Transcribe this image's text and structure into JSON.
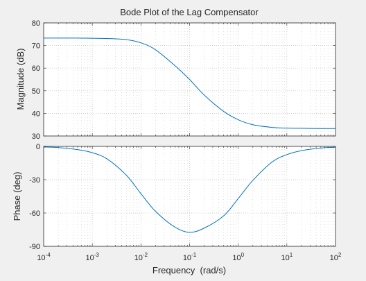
{
  "title": "Bode Plot of the Lag Compensator",
  "colors": {
    "figure_bg": "#f0f0f0",
    "axes_bg": "#ffffff",
    "line": "#0072bd",
    "grid": "#bfbfbf",
    "text": "#262626"
  },
  "chart_data": [
    {
      "type": "line",
      "panel": "magnitude",
      "ylabel": "Magnitude (dB)",
      "xscale": "log",
      "xlim": [
        0.0001,
        100
      ],
      "ylim": [
        30,
        80
      ],
      "yticks": [
        30,
        40,
        50,
        60,
        70,
        80
      ],
      "grid": true,
      "x": [
        0.0001,
        0.0002,
        0.0005,
        0.001,
        0.002,
        0.005,
        0.01,
        0.02,
        0.05,
        0.1,
        0.2,
        0.5,
        1,
        2,
        5,
        10,
        20,
        50,
        100
      ],
      "values": [
        73.3,
        73.3,
        73.3,
        73.2,
        73.1,
        72.6,
        71.2,
        68.1,
        61.1,
        55.0,
        48.1,
        40.9,
        37.2,
        35.0,
        33.8,
        33.5,
        33.4,
        33.3,
        33.3
      ]
    },
    {
      "type": "line",
      "panel": "phase",
      "xlabel": "Frequency  (rad/s)",
      "ylabel": "Phase (deg)",
      "xscale": "log",
      "xlim": [
        0.0001,
        100
      ],
      "ylim": [
        -90,
        0
      ],
      "yticks": [
        -90,
        -60,
        -30,
        0
      ],
      "xticks": [
        "10^-4",
        "10^-3",
        "10^-2",
        "10^-1",
        "10^0",
        "10^1",
        "10^2"
      ],
      "grid": true,
      "x": [
        0.0001,
        0.0002,
        0.0005,
        0.001,
        0.002,
        0.005,
        0.01,
        0.02,
        0.05,
        0.1,
        0.2,
        0.5,
        1,
        2,
        5,
        10,
        20,
        50,
        100
      ],
      "values": [
        -0.6,
        -1.1,
        -2.9,
        -5.7,
        -11.2,
        -25.9,
        -42.6,
        -58.5,
        -72.7,
        -77.4,
        -73.6,
        -62.6,
        -47.0,
        -30.6,
        -14.0,
        -7.4,
        -3.8,
        -1.5,
        -0.8
      ]
    }
  ]
}
